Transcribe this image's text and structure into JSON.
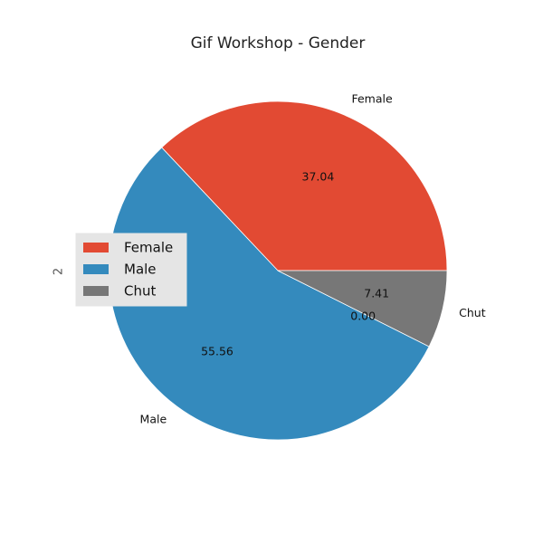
{
  "chart_data": {
    "type": "pie",
    "title": "Gif Workshop - Gender",
    "ylabel": "2",
    "labels": [
      "Female",
      "Male",
      "Chut"
    ],
    "values": [
      37.04,
      55.56,
      7.41
    ],
    "pct_labels": [
      "37.04",
      "55.56",
      "7.41"
    ],
    "extra_label": "0.00",
    "colors": [
      "#E24A33",
      "#348ABD",
      "#777777"
    ],
    "legend": {
      "placement": "center-left",
      "entries": [
        "Female",
        "Male",
        "Chut"
      ]
    },
    "start_angle": 0,
    "direction": "counterclockwise"
  }
}
